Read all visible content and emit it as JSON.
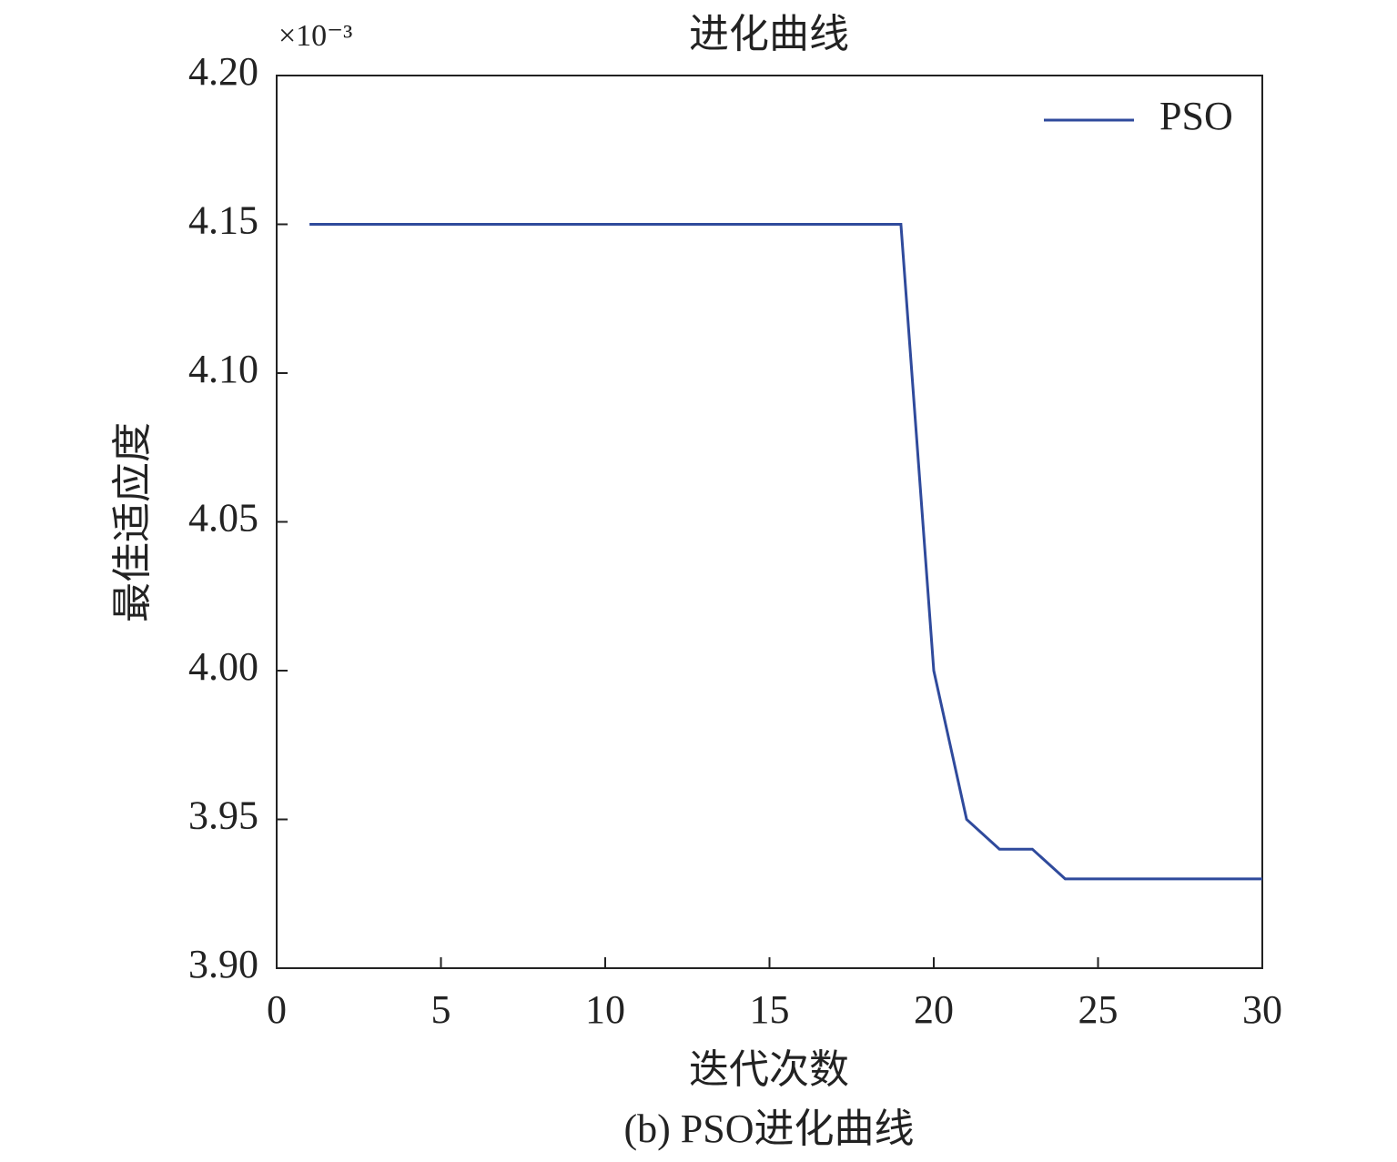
{
  "chart_data": {
    "type": "line",
    "title": "进化曲线",
    "multiplier": "×10⁻³",
    "x_label": "迭代次数",
    "y_label": "最佳适应度",
    "caption": "(b) PSO进化曲线",
    "x": [
      1,
      2,
      3,
      4,
      5,
      6,
      7,
      8,
      9,
      10,
      11,
      12,
      13,
      14,
      15,
      16,
      17,
      18,
      19,
      20,
      21,
      22,
      23,
      24,
      25,
      26,
      27,
      28,
      29,
      30
    ],
    "series": [
      {
        "name": "PSO",
        "color": "#2f4a9c",
        "values": [
          4.15,
          4.15,
          4.15,
          4.15,
          4.15,
          4.15,
          4.15,
          4.15,
          4.15,
          4.15,
          4.15,
          4.15,
          4.15,
          4.15,
          4.15,
          4.15,
          4.15,
          4.15,
          4.15,
          4.0,
          3.95,
          3.94,
          3.94,
          3.93,
          3.93,
          3.93,
          3.93,
          3.93,
          3.93,
          3.93
        ]
      }
    ],
    "xlim": [
      0,
      30
    ],
    "xticks": [
      0,
      5,
      10,
      15,
      20,
      25,
      30
    ],
    "ylim": [
      3.9,
      4.2
    ],
    "yticks": [
      {
        "value": 3.9,
        "label": "3.90"
      },
      {
        "value": 3.95,
        "label": "3.95"
      },
      {
        "value": 4.0,
        "label": "4.00"
      },
      {
        "value": 4.05,
        "label": "4.05"
      },
      {
        "value": 4.1,
        "label": "4.10"
      },
      {
        "value": 4.15,
        "label": "4.15"
      },
      {
        "value": 4.2,
        "label": "4.20"
      }
    ],
    "grid": false,
    "legend": "upper right"
  }
}
